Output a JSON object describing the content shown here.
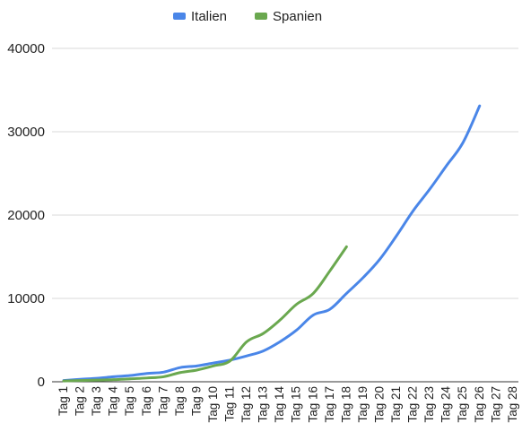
{
  "chart_data": {
    "type": "line",
    "title": "",
    "xlabel": "",
    "ylabel": "",
    "categories": [
      "Tag 1",
      "Tag 2",
      "Tag 3",
      "Tag 4",
      "Tag 5",
      "Tag 6",
      "Tag 7",
      "Tag 8",
      "Tag 9",
      "Tag 10",
      "Tag 11",
      "Tag 12",
      "Tag 13",
      "Tag 14",
      "Tag 15",
      "Tag 16",
      "Tag 17",
      "Tag 18",
      "Tag 19",
      "Tag 20",
      "Tag 21",
      "Tag 22",
      "Tag 23",
      "Tag 24",
      "Tag 25",
      "Tag 26",
      "Tag 27",
      "Tag 28"
    ],
    "ylim": [
      0,
      40000
    ],
    "yticks": [
      0,
      10000,
      20000,
      30000,
      40000
    ],
    "grid": true,
    "legend_position": "top",
    "series": [
      {
        "name": "Italien",
        "color": "#4a86e8",
        "values": [
          150,
          300,
          420,
          600,
          750,
          1000,
          1150,
          1700,
          1900,
          2250,
          2600,
          3100,
          3700,
          4800,
          6200,
          8000,
          8700,
          10600,
          12500,
          14700,
          17500,
          20500,
          23100,
          25900,
          28700,
          33100,
          null,
          null
        ]
      },
      {
        "name": "Spanien",
        "color": "#6aa84f",
        "values": [
          100,
          150,
          200,
          250,
          350,
          450,
          600,
          1100,
          1400,
          1900,
          2500,
          4800,
          5800,
          7400,
          9300,
          10600,
          13300,
          16200,
          null,
          null,
          null,
          null,
          null,
          null,
          null,
          null,
          null,
          null
        ]
      }
    ]
  }
}
